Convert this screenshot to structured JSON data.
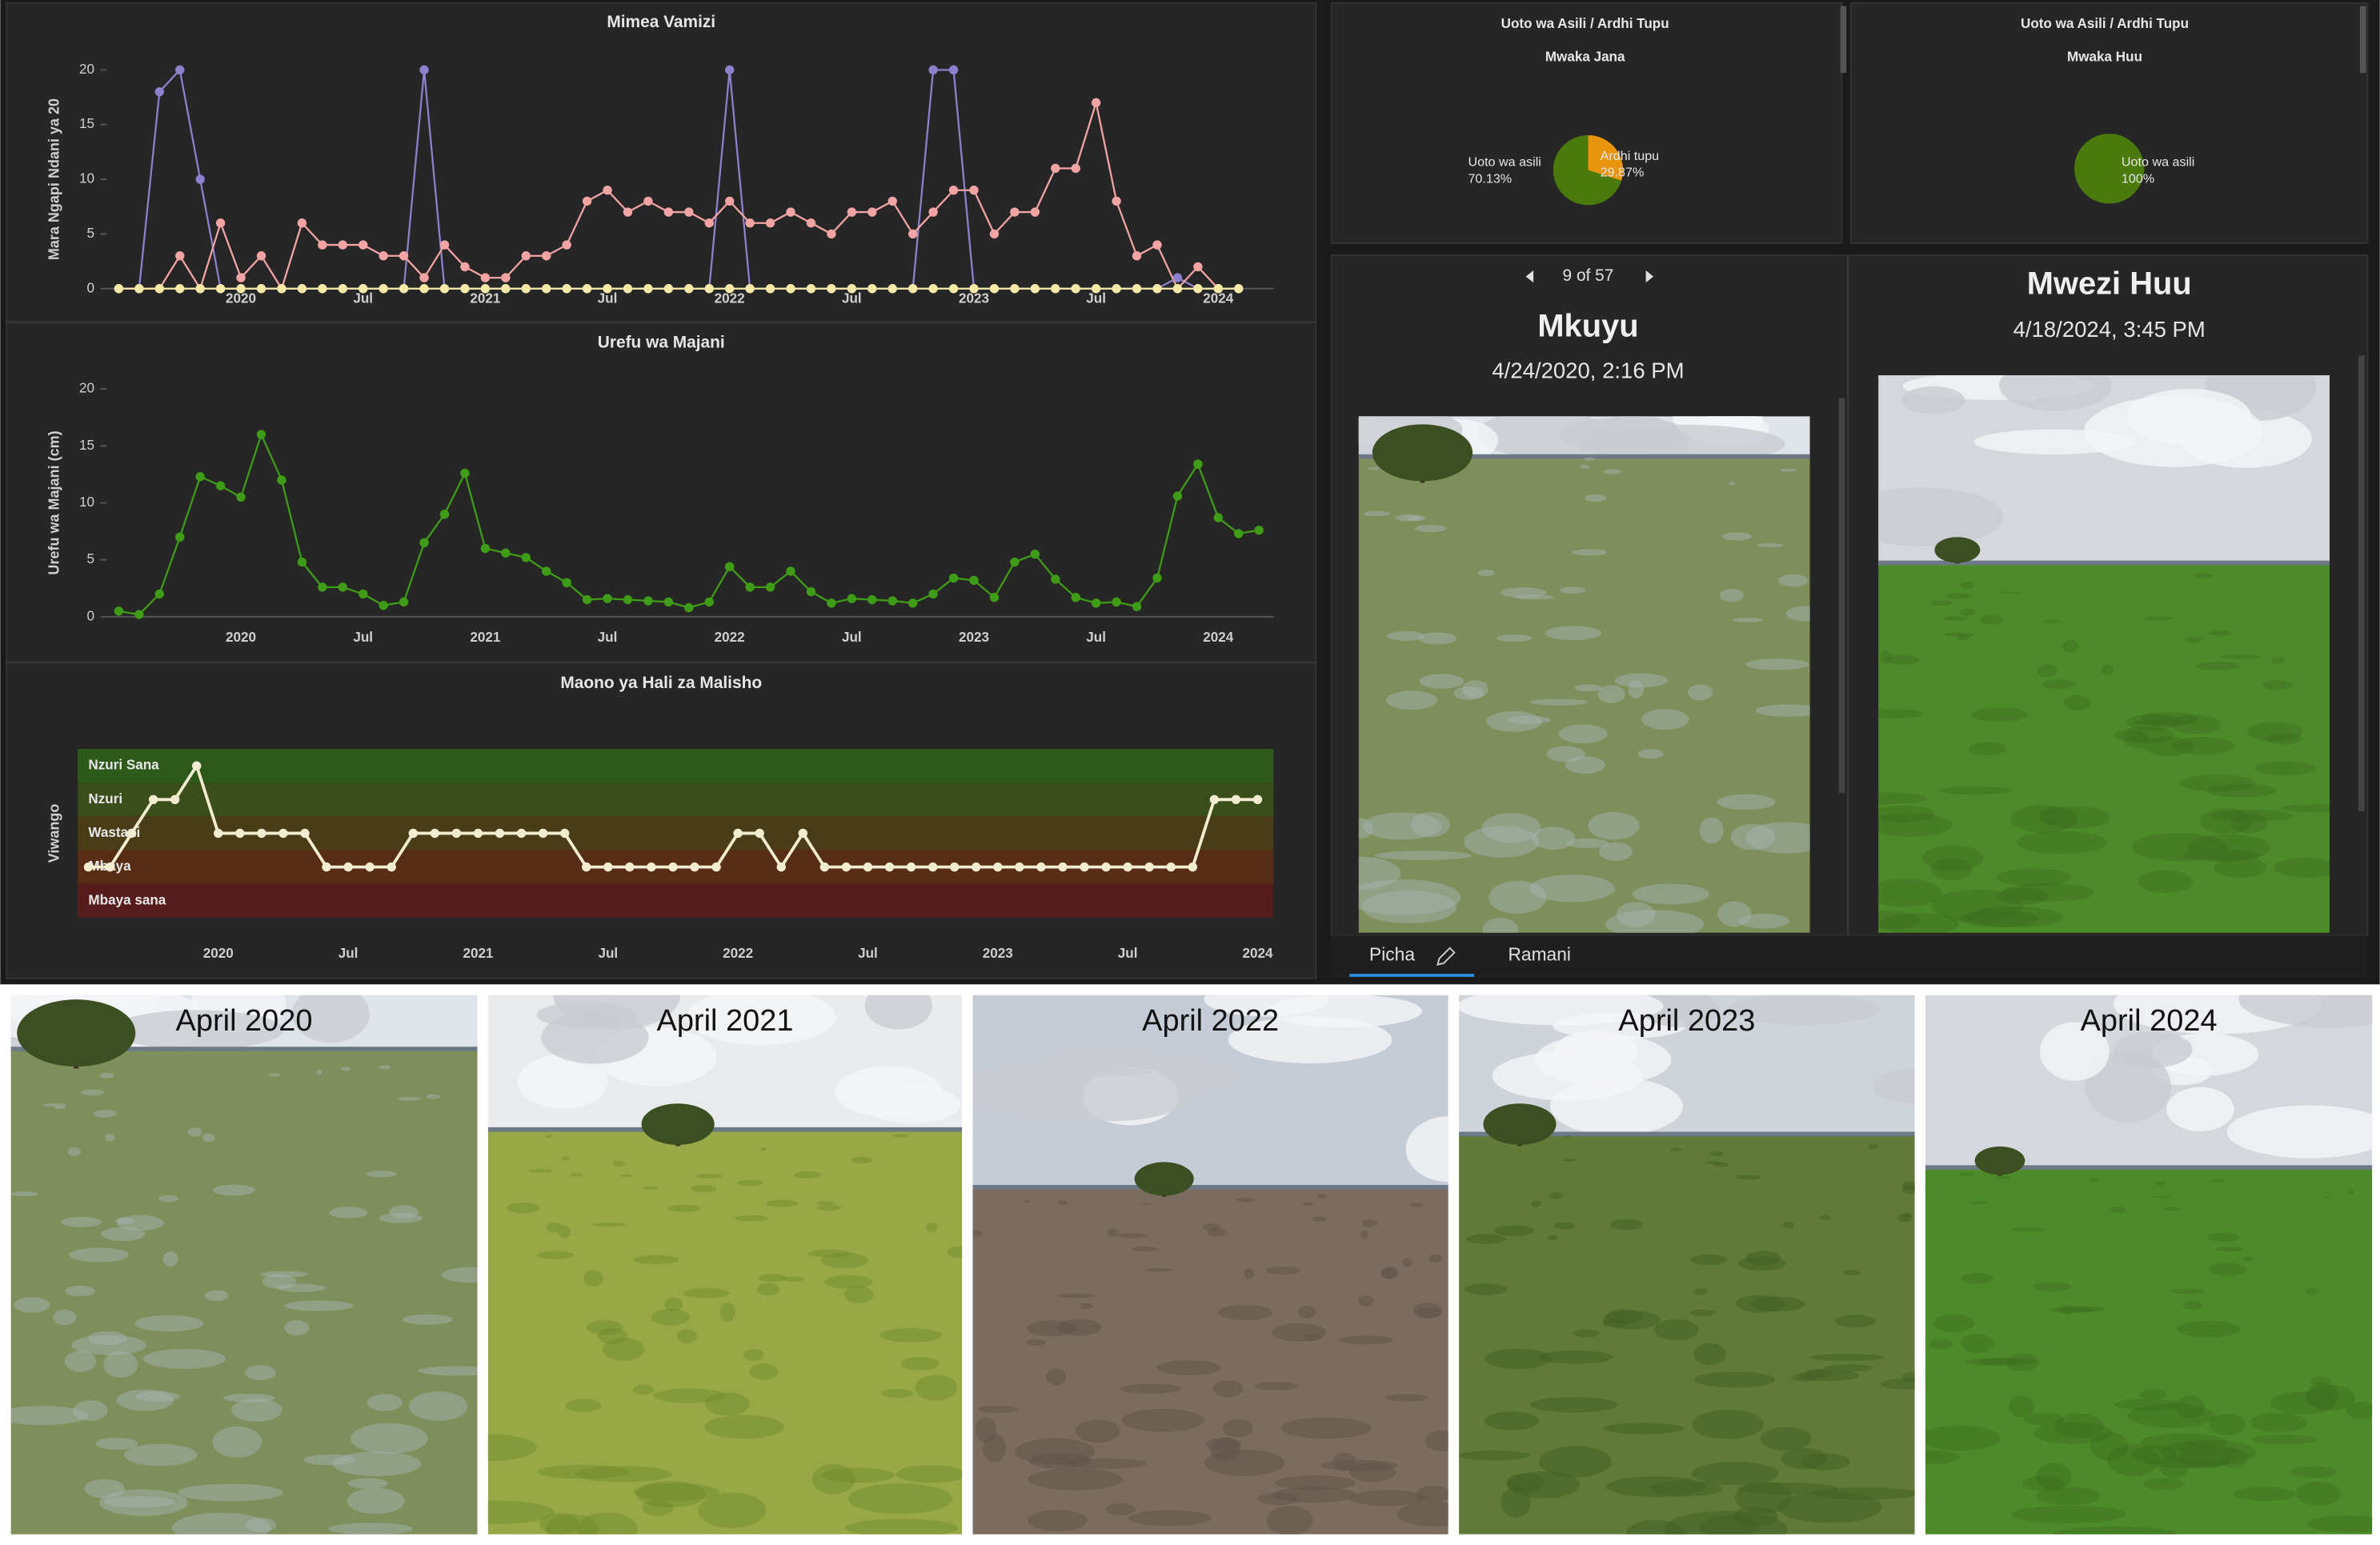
{
  "chart_data": [
    {
      "type": "line",
      "title": "Mimea Vamizi",
      "y_label": "Mara Ngapi Ndani ya 20",
      "categories": [
        null,
        null,
        null,
        null,
        null,
        null,
        "2020",
        null,
        null,
        null,
        null,
        null,
        "Jul",
        null,
        null,
        null,
        null,
        null,
        "2021",
        null,
        null,
        null,
        null,
        null,
        "Jul",
        null,
        null,
        null,
        null,
        null,
        "2022",
        null,
        null,
        null,
        null,
        null,
        "Jul",
        null,
        null,
        null,
        null,
        null,
        "2023",
        null,
        null,
        null,
        null,
        null,
        "Jul",
        null,
        null,
        null,
        null,
        null,
        "2024",
        null,
        null
      ],
      "ylim": [
        0,
        20
      ],
      "yticks": [
        0,
        5,
        10,
        15,
        20
      ],
      "grid": false,
      "series": [
        {
          "color": "#8d80cc",
          "values": [
            0,
            0,
            18,
            20,
            10,
            0,
            0,
            0,
            0,
            0,
            0,
            0,
            0,
            0,
            0,
            20,
            0,
            0,
            0,
            0,
            0,
            0,
            0,
            0,
            0,
            0,
            0,
            0,
            0,
            0,
            20,
            0,
            0,
            0,
            0,
            0,
            0,
            0,
            0,
            0,
            20,
            20,
            0,
            0,
            0,
            0,
            0,
            0,
            0,
            0,
            0,
            0,
            1,
            0,
            0,
            0,
            null
          ]
        },
        {
          "color": "#f2a3a3",
          "values": [
            0,
            0,
            0,
            3,
            0,
            6,
            1,
            3,
            0,
            6,
            4,
            4,
            4,
            3,
            3,
            1,
            4,
            2,
            1,
            1,
            3,
            3,
            4,
            8,
            9,
            7,
            8,
            7,
            7,
            6,
            8,
            6,
            6,
            7,
            6,
            5,
            7,
            7,
            8,
            5,
            7,
            9,
            9,
            5,
            7,
            7,
            11,
            11,
            17,
            8,
            3,
            4,
            0,
            2,
            0,
            null,
            null
          ]
        },
        {
          "color": "#f5e9a6",
          "values": [
            0,
            0,
            0,
            0,
            0,
            0,
            0,
            0,
            0,
            0,
            0,
            0,
            0,
            0,
            0,
            0,
            0,
            0,
            0,
            0,
            0,
            0,
            0,
            0,
            0,
            0,
            0,
            0,
            0,
            0,
            0,
            0,
            0,
            0,
            0,
            0,
            0,
            0,
            0,
            0,
            0,
            0,
            0,
            0,
            0,
            0,
            0,
            0,
            0,
            0,
            0,
            0,
            0,
            0,
            0,
            0,
            null
          ]
        }
      ]
    },
    {
      "type": "line",
      "title": "Urefu wa Majani",
      "y_label": "Urefu wa Majani (cm)",
      "categories": [
        null,
        null,
        null,
        null,
        null,
        null,
        "2020",
        null,
        null,
        null,
        null,
        null,
        "Jul",
        null,
        null,
        null,
        null,
        null,
        "2021",
        null,
        null,
        null,
        null,
        null,
        "Jul",
        null,
        null,
        null,
        null,
        null,
        "2022",
        null,
        null,
        null,
        null,
        null,
        "Jul",
        null,
        null,
        null,
        null,
        null,
        "2023",
        null,
        null,
        null,
        null,
        null,
        "Jul",
        null,
        null,
        null,
        null,
        null,
        "2024",
        null,
        null
      ],
      "ylim": [
        0,
        20
      ],
      "yticks": [
        0,
        5,
        10,
        15,
        20
      ],
      "grid": false,
      "series": [
        {
          "color": "#3f9c17",
          "values": [
            0.5,
            0.2,
            2,
            7,
            12.3,
            11.5,
            10.5,
            16,
            12,
            4.8,
            2.6,
            2.6,
            2,
            1,
            1.3,
            6.5,
            9,
            12.6,
            6,
            5.6,
            5.2,
            4,
            3,
            1.5,
            1.6,
            1.5,
            1.4,
            1.3,
            0.8,
            1.3,
            4.4,
            2.6,
            2.6,
            4,
            2.2,
            1.2,
            1.6,
            1.5,
            1.4,
            1.2,
            2,
            3.4,
            3.2,
            1.7,
            4.8,
            5.5,
            3.3,
            1.7,
            1.2,
            1.3,
            0.9,
            3.4,
            10.6,
            13.4,
            8.7,
            7.3,
            7.6
          ]
        }
      ]
    },
    {
      "type": "line",
      "title": "Maono ya Hali za Malisho",
      "y_label": "Viwango",
      "categories": [
        null,
        null,
        null,
        null,
        null,
        null,
        "2020",
        null,
        null,
        null,
        null,
        null,
        "Jul",
        null,
        null,
        null,
        null,
        null,
        "2021",
        null,
        null,
        null,
        null,
        null,
        "Jul",
        null,
        null,
        null,
        null,
        null,
        "2022",
        null,
        null,
        null,
        null,
        null,
        "Jul",
        null,
        null,
        null,
        null,
        null,
        "2023",
        null,
        null,
        null,
        null,
        null,
        "Jul",
        null,
        null,
        null,
        null,
        null,
        "2024"
      ],
      "ylim": [
        0.5,
        5.5
      ],
      "yticks": [
        {
          "value": 5,
          "label": "Nzuri Sana"
        },
        {
          "value": 4,
          "label": "Nzuri"
        },
        {
          "value": 3,
          "label": "Wastani"
        },
        {
          "value": 2,
          "label": "Mbaya"
        },
        {
          "value": 1,
          "label": "Mbaya sana"
        }
      ],
      "band_colors": [
        "#2d5a1a",
        "#3a4e1a",
        "#4a3c17",
        "#572d16",
        "#561c1c"
      ],
      "grid": false,
      "series": [
        {
          "color": "#f2ecd0",
          "values": [
            2,
            2,
            3,
            4,
            4,
            5,
            3,
            3,
            3,
            3,
            3,
            2,
            2,
            2,
            2,
            3,
            3,
            3,
            3,
            3,
            3,
            3,
            3,
            2,
            2,
            2,
            2,
            2,
            2,
            2,
            3,
            3,
            2,
            3,
            2,
            2,
            2,
            2,
            2,
            2,
            2,
            2,
            2,
            2,
            2,
            2,
            2,
            2,
            2,
            2,
            2,
            2,
            4,
            4,
            4
          ]
        }
      ]
    },
    {
      "type": "pie",
      "title": "Uoto wa Asili / Ardhi Tupu",
      "subtitle": "Mwaka Jana",
      "categories": [
        "Uoto wa asili",
        "Ardhi tupu"
      ],
      "values": [
        70.13,
        29.87
      ],
      "value_labels": [
        "70.13%",
        "29.87%"
      ],
      "colors": [
        "#4b7a0c",
        "#e8940c"
      ]
    },
    {
      "type": "pie",
      "title": "Uoto wa Asili / Ardhi Tupu",
      "subtitle": "Mwaka Huu",
      "categories": [
        "Uoto wa asili"
      ],
      "values": [
        100
      ],
      "value_labels": [
        "100%"
      ],
      "colors": [
        "#4b7a0c"
      ]
    }
  ],
  "photo_viewer": {
    "pager": "9 of 57",
    "cards": [
      {
        "title": "Mkuyu",
        "date": "4/24/2020, 2:16 PM"
      },
      {
        "title": "Mwezi Huu",
        "date": "4/18/2024, 3:45 PM"
      }
    ],
    "tabs": [
      "Picha",
      "Ramani"
    ]
  },
  "photo_strip": {
    "captions": [
      "April 2020",
      "April 2021",
      "April 2022",
      "April 2023",
      "April 2024"
    ]
  }
}
